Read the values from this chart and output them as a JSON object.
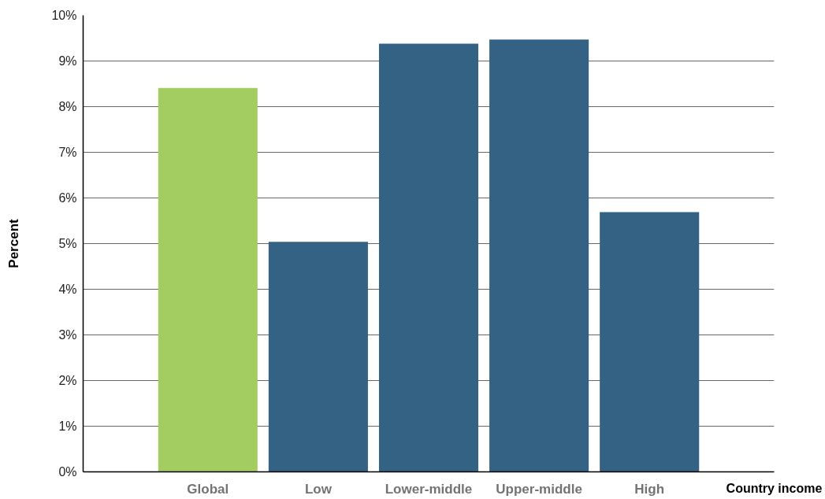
{
  "chart_data": {
    "type": "bar",
    "xlabel": "Country income",
    "ylabel": "Percent",
    "categories": [
      "Global",
      "Low",
      "Lower-middle",
      "Upper-middle",
      "High"
    ],
    "values": [
      8.41,
      5.04,
      9.38,
      9.47,
      5.69
    ],
    "colors": [
      "#a3cd61",
      "#346285",
      "#346285",
      "#346285",
      "#346285"
    ],
    "ylim": [
      0,
      10
    ],
    "yticks": [
      {
        "value": 0,
        "label": "0%"
      },
      {
        "value": 1,
        "label": "1%"
      },
      {
        "value": 2,
        "label": "2%"
      },
      {
        "value": 3,
        "label": "3%"
      },
      {
        "value": 4,
        "label": "4%"
      },
      {
        "value": 5,
        "label": "5%"
      },
      {
        "value": 6,
        "label": "6%"
      },
      {
        "value": 7,
        "label": "7%"
      },
      {
        "value": 8,
        "label": "8%"
      },
      {
        "value": 9,
        "label": "9%"
      },
      {
        "value": 10,
        "label": "10%"
      }
    ],
    "grid": "y"
  }
}
